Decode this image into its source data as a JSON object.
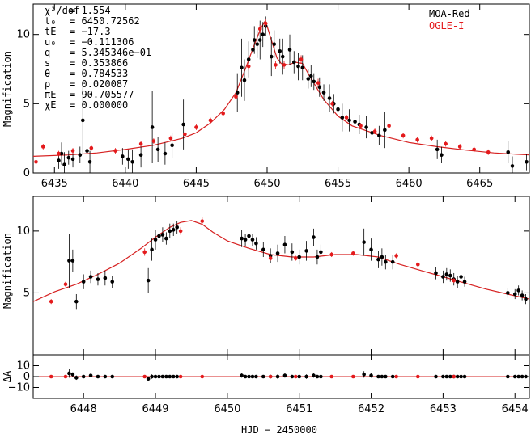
{
  "colors": {
    "moa": "#000000",
    "ogle": "#e41a1c",
    "model": "#d62020"
  },
  "parameters": [
    {
      "key": "χ²/dof",
      "value": "= 1.554"
    },
    {
      "key": "t₀",
      "value": "= 6450.72562"
    },
    {
      "key": "tE",
      "value": "= −17.3"
    },
    {
      "key": "u₀",
      "value": "= −0.111306"
    },
    {
      "key": "q",
      "value": "= 5.345346e−01"
    },
    {
      "key": "s",
      "value": "= 0.353866"
    },
    {
      "key": "θ",
      "value": "= 0.784533"
    },
    {
      "key": "ρ",
      "value": "= 0.020087"
    },
    {
      "key": "πE",
      "value": "= 90.705577"
    },
    {
      "key": "χE",
      "value": "= 0.000000"
    }
  ],
  "xlabel": "HJD − 2450000",
  "chart_data": [
    {
      "type": "scatter",
      "name": "top",
      "xlim": [
        6433.5,
        6468.5
      ],
      "ylim": [
        0,
        12.2
      ],
      "xticks": [
        6435,
        6440,
        6445,
        6450,
        6455,
        6460,
        6465
      ],
      "xtick_labels": [
        "6435",
        "6440",
        "6445",
        "6450",
        "6455",
        "6460",
        "6465"
      ],
      "yticks": [
        0,
        5,
        10
      ],
      "ytick_labels": [
        "0",
        "5",
        "10"
      ],
      "ylabel": "Magnification",
      "legend": [
        "MOA-Red",
        "OGLE-I"
      ],
      "model": {
        "x": [
          6433.5,
          6436,
          6438,
          6440,
          6442,
          6444,
          6445,
          6446,
          6447,
          6447.8,
          6448.5,
          6449,
          6449.5,
          6449.8,
          6450,
          6450.3,
          6450.7,
          6451,
          6451.5,
          6452,
          6452.5,
          6453,
          6454,
          6455,
          6456,
          6458,
          6460,
          6462,
          6464,
          6466,
          6468.5
        ],
        "y": [
          1.2,
          1.3,
          1.45,
          1.7,
          2.0,
          2.5,
          2.9,
          3.6,
          4.6,
          5.8,
          7.6,
          9.0,
          10.3,
          10.9,
          10.6,
          9.6,
          8.3,
          7.9,
          7.8,
          8.0,
          7.9,
          7.0,
          5.3,
          4.1,
          3.4,
          2.7,
          2.2,
          1.9,
          1.65,
          1.45,
          1.3
        ]
      },
      "series": [
        {
          "name": "MOA-Red",
          "x": [
            6435.3,
            6435.5,
            6435.7,
            6436.0,
            6436.3,
            6436.8,
            6437.0,
            6437.3,
            6437.5,
            6439.8,
            6440.2,
            6440.5,
            6441.1,
            6441.9,
            6442.3,
            6442.8,
            6443.3,
            6444.1,
            6447.9,
            6448.2,
            6448.4,
            6448.7,
            6449.0,
            6449.1,
            6449.3,
            6449.5,
            6449.7,
            6449.9,
            6450.3,
            6450.5,
            6450.9,
            6451.1,
            6451.6,
            6451.9,
            6452.2,
            6452.5,
            6452.9,
            6453.1,
            6453.3,
            6453.7,
            6454.0,
            6454.4,
            6454.7,
            6455.0,
            6455.3,
            6455.8,
            6456.2,
            6456.5,
            6457.0,
            6457.4,
            6457.9,
            6458.3,
            6462.0,
            6462.3,
            6467.0,
            6467.3,
            6468.3
          ],
          "y": [
            0.9,
            1.4,
            0.6,
            1.1,
            1.0,
            1.3,
            3.8,
            1.6,
            0.8,
            1.2,
            1.0,
            0.8,
            1.3,
            3.3,
            1.7,
            1.4,
            2.0,
            3.5,
            5.8,
            7.6,
            6.7,
            8.2,
            8.9,
            9.6,
            9.3,
            9.6,
            10.0,
            10.6,
            8.4,
            9.3,
            8.8,
            8.4,
            8.9,
            8.0,
            7.7,
            7.6,
            6.8,
            7.0,
            6.6,
            6.2,
            5.8,
            5.4,
            5.0,
            4.6,
            4.0,
            3.8,
            3.7,
            3.5,
            3.3,
            2.9,
            2.7,
            3.1,
            1.7,
            1.3,
            1.5,
            0.5,
            0.8
          ],
          "err": [
            0.6,
            0.8,
            0.9,
            0.5,
            0.6,
            0.6,
            2.5,
            1.2,
            0.8,
            0.6,
            0.7,
            0.9,
            0.9,
            2.6,
            0.9,
            0.8,
            0.9,
            1.8,
            1.4,
            2.1,
            1.5,
            1.3,
            1.1,
            1.0,
            1.0,
            1.4,
            0.9,
            0.7,
            1.4,
            1.0,
            0.9,
            1.3,
            1.1,
            0.8,
            1.0,
            0.9,
            0.7,
            0.8,
            0.6,
            0.7,
            0.6,
            1.0,
            0.7,
            0.6,
            1.0,
            0.8,
            0.9,
            0.7,
            0.8,
            0.6,
            0.7,
            1.3,
            0.7,
            0.6,
            0.8,
            0.7,
            0.6
          ]
        },
        {
          "name": "OGLE-I",
          "x": [
            6433.7,
            6434.2,
            6435.3,
            6436.3,
            6437.6,
            6439.3,
            6441.1,
            6442.0,
            6443.2,
            6444.2,
            6445.0,
            6446.0,
            6446.9,
            6447.8,
            6448.7,
            6449.5,
            6449.9,
            6450.6,
            6451.2,
            6452.4,
            6453.6,
            6454.6,
            6455.6,
            6456.6,
            6457.6,
            6458.6,
            6459.6,
            6460.6,
            6461.6,
            6462.6,
            6463.6,
            6464.6,
            6465.6
          ],
          "y": [
            0.8,
            1.9,
            1.4,
            1.6,
            1.8,
            1.6,
            2.1,
            2.3,
            2.5,
            2.8,
            3.3,
            3.8,
            4.3,
            5.5,
            7.7,
            10.4,
            10.8,
            7.8,
            7.8,
            8.2,
            6.5,
            5.0,
            4.0,
            3.4,
            3.0,
            3.4,
            2.7,
            2.4,
            2.5,
            2.1,
            1.9,
            1.7,
            1.5
          ],
          "err": [
            0.2,
            0.2,
            0.2,
            0.2,
            0.2,
            0.2,
            0.2,
            0.2,
            0.2,
            0.2,
            0.2,
            0.2,
            0.2,
            0.3,
            0.3,
            0.3,
            0.3,
            0.3,
            0.3,
            0.3,
            0.3,
            0.2,
            0.2,
            0.2,
            0.2,
            0.2,
            0.2,
            0.2,
            0.2,
            0.2,
            0.2,
            0.2,
            0.2
          ]
        }
      ]
    },
    {
      "type": "scatter",
      "name": "zoom",
      "xlim": [
        6447.3,
        6454.2
      ],
      "ylim": [
        0,
        12.8
      ],
      "xticks": [
        6448,
        6449,
        6450,
        6451,
        6452,
        6453,
        6454
      ],
      "xtick_labels": [
        "6448",
        "6449",
        "6450",
        "6451",
        "6452",
        "6453",
        "6454"
      ],
      "yticks": [
        5,
        10
      ],
      "ytick_labels": [
        "5",
        "10"
      ],
      "ylabel": "Magnification",
      "model": {
        "x": [
          6447.3,
          6447.6,
          6447.9,
          6448.2,
          6448.5,
          6448.8,
          6449.0,
          6449.2,
          6449.35,
          6449.5,
          6449.65,
          6449.8,
          6450.0,
          6450.3,
          6450.6,
          6450.9,
          6451.2,
          6451.5,
          6451.8,
          6452.1,
          6452.4,
          6452.7,
          6453.0,
          6453.3,
          6453.6,
          6453.9,
          6454.2
        ],
        "y": [
          4.3,
          5.1,
          5.7,
          6.5,
          7.4,
          8.6,
          9.5,
          10.3,
          10.7,
          10.85,
          10.55,
          9.9,
          9.2,
          8.6,
          8.1,
          7.9,
          7.9,
          8.1,
          8.1,
          7.9,
          7.3,
          6.8,
          6.3,
          5.8,
          5.3,
          4.9,
          4.5
        ]
      },
      "series": [
        {
          "name": "MOA-Red",
          "x": [
            6447.8,
            6447.85,
            6447.9,
            6448.0,
            6448.1,
            6448.2,
            6448.3,
            6448.4,
            6448.9,
            6448.95,
            6449.0,
            6449.05,
            6449.1,
            6449.15,
            6449.2,
            6449.25,
            6449.3,
            6450.2,
            6450.25,
            6450.3,
            6450.35,
            6450.4,
            6450.5,
            6450.6,
            6450.7,
            6450.8,
            6450.9,
            6451.0,
            6451.1,
            6451.2,
            6451.25,
            6451.3,
            6451.9,
            6452.0,
            6452.1,
            6452.15,
            6452.2,
            6452.3,
            6452.9,
            6453.0,
            6453.05,
            6453.1,
            6453.15,
            6453.2,
            6453.25,
            6453.3,
            6453.9,
            6454.0,
            6454.05,
            6454.1,
            6454.15
          ],
          "y": [
            7.6,
            7.6,
            4.3,
            5.9,
            6.3,
            6.1,
            6.2,
            5.9,
            6.0,
            8.5,
            9.3,
            9.6,
            9.7,
            9.4,
            10.0,
            10.1,
            10.3,
            9.4,
            9.3,
            9.6,
            9.3,
            9.0,
            8.5,
            8.0,
            8.2,
            8.9,
            8.3,
            7.9,
            8.4,
            9.5,
            7.9,
            8.3,
            9.1,
            8.5,
            7.7,
            7.9,
            7.5,
            7.5,
            6.6,
            6.3,
            6.5,
            6.4,
            6.1,
            5.9,
            6.3,
            5.9,
            5.0,
            4.9,
            5.2,
            4.8,
            4.5
          ],
          "err": [
            2.2,
            0.9,
            0.6,
            0.6,
            0.5,
            0.5,
            0.6,
            0.5,
            1.0,
            0.9,
            0.8,
            0.6,
            0.6,
            0.5,
            0.6,
            0.5,
            0.5,
            0.7,
            0.5,
            0.5,
            0.5,
            0.5,
            0.6,
            0.6,
            0.7,
            0.7,
            0.7,
            0.6,
            0.8,
            0.7,
            0.6,
            0.6,
            1.1,
            0.9,
            0.7,
            0.7,
            0.6,
            0.6,
            0.5,
            0.5,
            0.5,
            0.5,
            0.5,
            0.5,
            0.5,
            0.4,
            0.4,
            0.4,
            0.4,
            0.4,
            0.4
          ]
        },
        {
          "name": "OGLE-I",
          "x": [
            6447.55,
            6447.75,
            6448.85,
            6449.35,
            6449.65,
            6450.6,
            6450.95,
            6451.45,
            6451.75,
            6452.35,
            6452.65,
            6453.15
          ],
          "y": [
            4.3,
            5.7,
            8.3,
            10.0,
            10.8,
            7.8,
            7.8,
            8.1,
            8.2,
            8.0,
            7.3,
            6.0
          ],
          "err": [
            0.2,
            0.2,
            0.3,
            0.3,
            0.3,
            0.2,
            0.2,
            0.2,
            0.2,
            0.2,
            0.2,
            0.2
          ]
        }
      ]
    },
    {
      "type": "scatter",
      "name": "residuals",
      "xlim": [
        6447.3,
        6454.2
      ],
      "ylim": [
        -20,
        20
      ],
      "yticks": [
        -10,
        0,
        10
      ],
      "ytick_labels": [
        "−10",
        "0",
        "10"
      ],
      "ylabel": "ΔA",
      "series": [
        {
          "name": "MOA-Red",
          "x": [
            6447.8,
            6447.85,
            6447.9,
            6448.0,
            6448.1,
            6448.2,
            6448.3,
            6448.4,
            6448.9,
            6448.95,
            6449.0,
            6449.05,
            6449.1,
            6449.15,
            6449.2,
            6449.25,
            6449.3,
            6450.2,
            6450.25,
            6450.3,
            6450.35,
            6450.4,
            6450.5,
            6450.6,
            6450.7,
            6450.8,
            6450.9,
            6451.0,
            6451.1,
            6451.2,
            6451.25,
            6451.3,
            6451.9,
            6452.0,
            6452.1,
            6452.15,
            6452.2,
            6452.3,
            6452.9,
            6453.0,
            6453.05,
            6453.1,
            6453.15,
            6453.2,
            6453.25,
            6453.3,
            6453.9,
            6454.0,
            6454.05,
            6454.1,
            6454.15
          ],
          "y": [
            3,
            2,
            -1,
            0,
            1,
            0,
            0,
            0,
            -2,
            0,
            0,
            0,
            0,
            0,
            0,
            0,
            0,
            1,
            0,
            0,
            0,
            0,
            0,
            0,
            0,
            1,
            0,
            0,
            0,
            1,
            0,
            0,
            2,
            1,
            0,
            0,
            0,
            0,
            0,
            0,
            0,
            0,
            0,
            0,
            0,
            0,
            0,
            0,
            0,
            0,
            0
          ],
          "err": [
            4,
            2,
            2,
            1,
            1,
            1,
            1,
            1,
            2,
            2,
            1,
            1,
            1,
            1,
            1,
            1,
            1,
            2,
            1,
            1,
            1,
            1,
            1,
            1,
            2,
            2,
            1,
            1,
            2,
            2,
            1,
            1,
            3,
            2,
            1,
            1,
            1,
            1,
            1,
            1,
            1,
            1,
            1,
            1,
            1,
            1,
            1,
            1,
            1,
            1,
            1
          ]
        },
        {
          "name": "OGLE-I",
          "x": [
            6447.55,
            6447.75,
            6448.85,
            6449.35,
            6449.65,
            6450.6,
            6450.95,
            6451.45,
            6451.75,
            6452.35,
            6452.65,
            6453.15
          ],
          "y": [
            0,
            0,
            0,
            0,
            0,
            0,
            0,
            0,
            0,
            0,
            0,
            0
          ],
          "err": [
            0.5,
            0.5,
            0.5,
            0.5,
            0.5,
            0.5,
            0.5,
            0.5,
            0.5,
            0.5,
            0.5,
            0.5
          ]
        }
      ]
    }
  ]
}
